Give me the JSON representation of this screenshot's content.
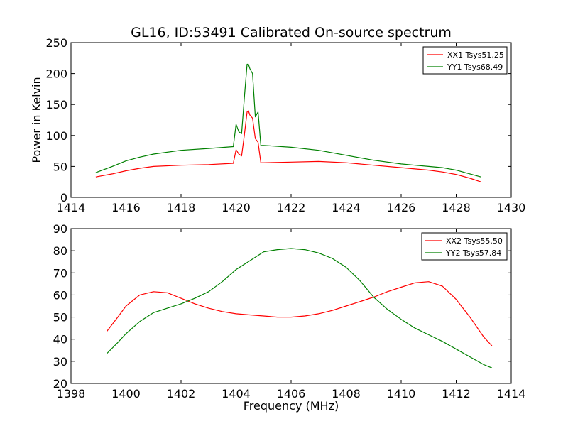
{
  "chart_data": [
    {
      "type": "line",
      "title": "GL16, ID:53491 Calibrated On-source spectrum",
      "xlabel": "",
      "ylabel": "Power in Kelvin",
      "xlim": [
        1414,
        1430
      ],
      "ylim": [
        0,
        250
      ],
      "xticks": [
        1414,
        1416,
        1418,
        1420,
        1422,
        1424,
        1426,
        1428,
        1430
      ],
      "yticks": [
        0,
        50,
        100,
        150,
        200,
        250
      ],
      "grid": false,
      "legend_position": "top-right",
      "series": [
        {
          "name": "XX1 Tsys51.25",
          "color": "#ff0000",
          "x": [
            1414.9,
            1415.5,
            1416.0,
            1416.5,
            1417.0,
            1418.0,
            1419.0,
            1419.9,
            1420.0,
            1420.1,
            1420.2,
            1420.3,
            1420.4,
            1420.45,
            1420.5,
            1420.6,
            1420.7,
            1420.8,
            1420.9,
            1421.0,
            1422.0,
            1423.0,
            1424.0,
            1425.0,
            1426.0,
            1426.5,
            1427.0,
            1427.5,
            1428.0,
            1428.5,
            1428.9
          ],
          "y": [
            33,
            38,
            43,
            47,
            50,
            52,
            53,
            55,
            77,
            70,
            67,
            100,
            138,
            140,
            133,
            128,
            95,
            89,
            56,
            56,
            57,
            58,
            56,
            52,
            48,
            46,
            44,
            41,
            37,
            31,
            25
          ]
        },
        {
          "name": "YY1 Tsys68.49",
          "color": "#008000",
          "x": [
            1414.9,
            1415.5,
            1416.0,
            1416.5,
            1417.0,
            1418.0,
            1419.0,
            1419.9,
            1420.0,
            1420.1,
            1420.2,
            1420.3,
            1420.4,
            1420.45,
            1420.5,
            1420.6,
            1420.7,
            1420.8,
            1420.9,
            1421.0,
            1422.0,
            1423.0,
            1424.0,
            1425.0,
            1426.0,
            1426.5,
            1427.0,
            1427.5,
            1428.0,
            1428.5,
            1428.9
          ],
          "y": [
            40,
            50,
            59,
            65,
            70,
            76,
            79,
            82,
            118,
            106,
            103,
            160,
            215,
            215,
            208,
            200,
            130,
            138,
            84,
            84,
            81,
            76,
            68,
            60,
            54,
            52,
            50,
            48,
            44,
            38,
            33
          ]
        }
      ]
    },
    {
      "type": "line",
      "title": "",
      "xlabel": "Frequency (MHz)",
      "ylabel": "",
      "xlim": [
        1398,
        1414
      ],
      "ylim": [
        20,
        90
      ],
      "xticks": [
        1398,
        1400,
        1402,
        1404,
        1406,
        1408,
        1410,
        1412,
        1414
      ],
      "yticks": [
        20,
        30,
        40,
        50,
        60,
        70,
        80,
        90
      ],
      "grid": false,
      "legend_position": "top-right",
      "series": [
        {
          "name": "XX2 Tsys55.50",
          "color": "#ff0000",
          "x": [
            1399.3,
            1399.7,
            1400.0,
            1400.5,
            1401.0,
            1401.5,
            1402.0,
            1402.5,
            1403.0,
            1403.5,
            1404.0,
            1404.5,
            1405.0,
            1405.5,
            1406.0,
            1406.5,
            1407.0,
            1407.5,
            1408.0,
            1408.5,
            1409.0,
            1409.5,
            1410.0,
            1410.5,
            1411.0,
            1411.5,
            1412.0,
            1412.5,
            1413.0,
            1413.3
          ],
          "y": [
            43.5,
            50,
            55,
            60,
            61.5,
            61,
            58.5,
            56,
            54,
            52.5,
            51.5,
            51,
            50.5,
            50,
            50,
            50.5,
            51.5,
            53,
            55,
            57,
            59,
            61.5,
            63.5,
            65.5,
            66,
            64,
            58,
            50,
            41,
            37
          ]
        },
        {
          "name": "YY2 Tsys57.84",
          "color": "#008000",
          "x": [
            1399.3,
            1399.7,
            1400.0,
            1400.5,
            1401.0,
            1401.5,
            1402.0,
            1402.5,
            1403.0,
            1403.5,
            1404.0,
            1404.5,
            1405.0,
            1405.5,
            1406.0,
            1406.5,
            1407.0,
            1407.5,
            1408.0,
            1408.5,
            1409.0,
            1409.5,
            1410.0,
            1410.5,
            1411.0,
            1411.5,
            1412.0,
            1412.5,
            1413.0,
            1413.3
          ],
          "y": [
            33.5,
            38.5,
            42.5,
            48,
            52,
            54,
            56,
            58.5,
            61.5,
            66,
            71.5,
            75.5,
            79.5,
            80.5,
            81,
            80.5,
            79,
            76.5,
            72.5,
            66.5,
            59,
            53.5,
            49,
            45,
            42,
            39,
            35.5,
            32,
            28.5,
            27
          ]
        }
      ]
    }
  ]
}
